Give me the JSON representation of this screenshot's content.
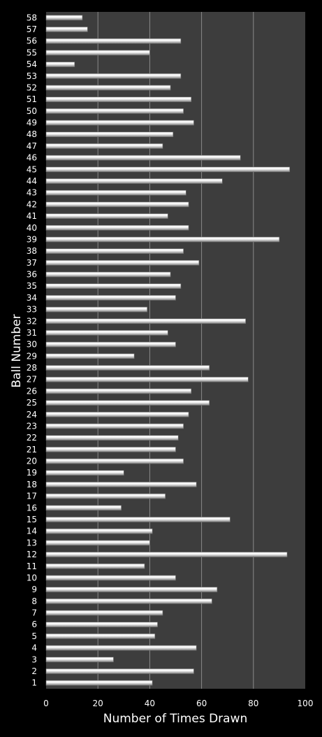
{
  "chart_data": {
    "type": "bar",
    "orientation": "horizontal",
    "title": "",
    "xlabel": "Number of Times Drawn",
    "ylabel": "Ball Number",
    "xlim": [
      0,
      100
    ],
    "xticks": [
      "0",
      "20",
      "40",
      "60",
      "80",
      "100"
    ],
    "grid": true,
    "legend": "none",
    "colors": {
      "background": "#000000",
      "plot_area": "#3d3d3d",
      "gridline": "#8a8a8a",
      "bar_light": "#ffffff",
      "bar_dark": "#8c8c8c",
      "text": "#ffffff"
    },
    "categories": [
      "1",
      "2",
      "3",
      "4",
      "5",
      "6",
      "7",
      "8",
      "9",
      "10",
      "11",
      "12",
      "13",
      "14",
      "15",
      "16",
      "17",
      "18",
      "19",
      "20",
      "21",
      "22",
      "23",
      "24",
      "25",
      "26",
      "27",
      "28",
      "29",
      "30",
      "31",
      "32",
      "33",
      "34",
      "35",
      "36",
      "37",
      "38",
      "39",
      "40",
      "41",
      "42",
      "43",
      "44",
      "45",
      "46",
      "47",
      "48",
      "49",
      "50",
      "51",
      "52",
      "53",
      "54",
      "55",
      "56",
      "57",
      "58"
    ],
    "values": [
      41,
      57,
      26,
      58,
      42,
      43,
      45,
      64,
      66,
      50,
      38,
      93,
      40,
      41,
      71,
      29,
      46,
      58,
      30,
      53,
      50,
      51,
      53,
      55,
      63,
      56,
      78,
      63,
      34,
      50,
      47,
      77,
      39,
      50,
      52,
      48,
      59,
      53,
      90,
      55,
      47,
      55,
      54,
      68,
      94,
      75,
      45,
      49,
      57,
      53,
      56,
      48,
      52,
      11,
      40,
      52,
      16,
      14
    ]
  }
}
